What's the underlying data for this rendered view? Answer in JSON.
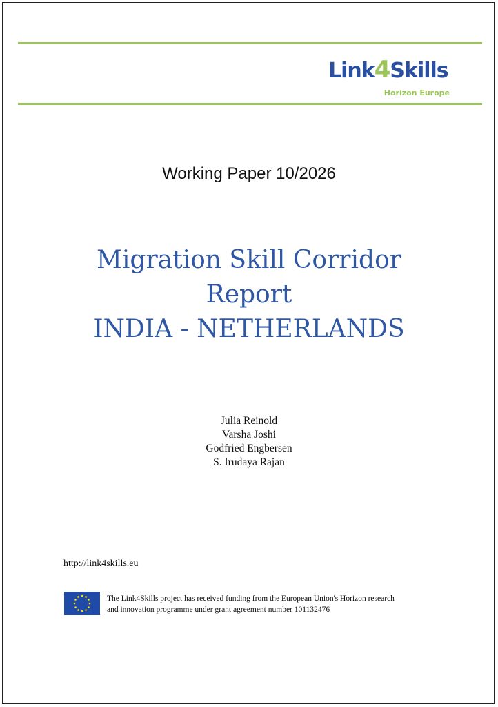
{
  "header": {
    "logo_text": "Link4Skills",
    "logo_subtext": "Horizon Europe",
    "accent_color": "#9bc45a",
    "brand_color": "#2b4fa0"
  },
  "cover": {
    "working_paper": "Working Paper 10/2026",
    "title_lines": [
      "Migration Skill Corridor",
      "Report",
      "INDIA - NETHERLANDS"
    ],
    "title_color": "#2f57a5",
    "authors": [
      "Julia Reinold",
      "Varsha Joshi",
      "Godfried Engbersen",
      "S. Irudaya Rajan"
    ]
  },
  "footer": {
    "url": "http://link4skills.eu",
    "flag_icon": "eu-flag-icon",
    "funding_lines": [
      "The Link4Skills project has received funding from the European Union's Horizon research",
      "and innovation programme under grant agreement number 101132476"
    ]
  }
}
